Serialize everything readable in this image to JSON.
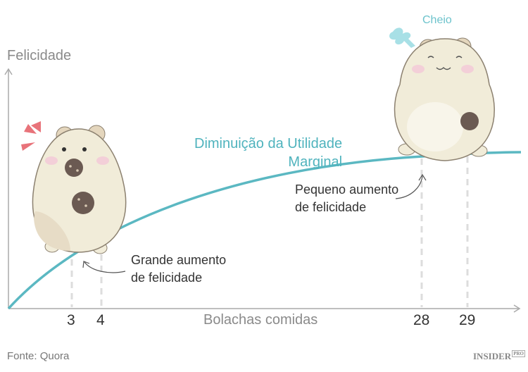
{
  "axes": {
    "y_label": "Felicidade",
    "x_label": "Bolachas comidas"
  },
  "ticks": [
    "3",
    "4",
    "28",
    "29"
  ],
  "curve_label": [
    "Diminuição da Utilidade",
    "Marginal"
  ],
  "annotations": {
    "large": [
      "Grande aumento",
      "de felicidade"
    ],
    "small": [
      "Pequeno aumento",
      "de felicidade"
    ],
    "full": "Cheio"
  },
  "footer": {
    "source": "Fonte: Quora",
    "logo": "INSIDER",
    "logo_badge": "PRO"
  },
  "colors": {
    "curve": "#5bb8c2",
    "axis": "#aaaaaa",
    "hamster": "#f1ecd9",
    "cookie": "#6b5a52",
    "blush": "#f3cfd8"
  }
}
